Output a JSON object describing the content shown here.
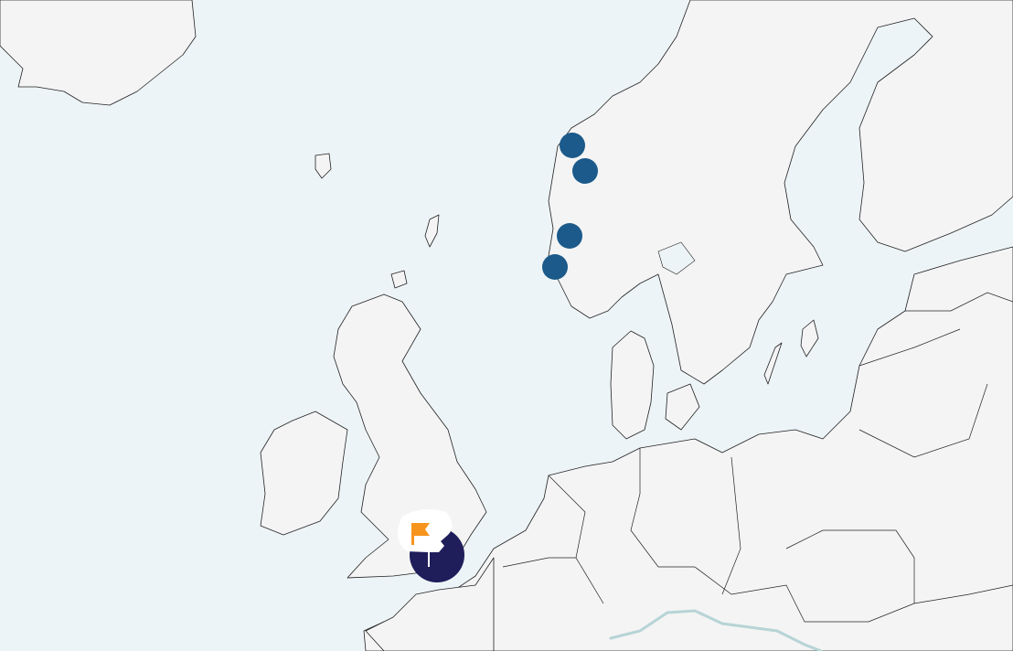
{
  "map": {
    "region": "Northern Europe",
    "colors": {
      "sea": "#edf4f7",
      "land": "#f4f4f4",
      "border": "#222222",
      "marker": "#1b5a8a",
      "cluster": "#1f1d5a",
      "flag": "#f7941d",
      "river": "#b7d4d6"
    },
    "markers": [
      {
        "id": "norway-1",
        "icon": "circle-marker"
      },
      {
        "id": "norway-2",
        "icon": "circle-marker"
      },
      {
        "id": "norway-3",
        "icon": "circle-marker"
      },
      {
        "id": "norway-4",
        "icon": "circle-marker"
      }
    ],
    "selected_marker": {
      "id": "england-southwest",
      "icon": "flag-icon"
    }
  }
}
